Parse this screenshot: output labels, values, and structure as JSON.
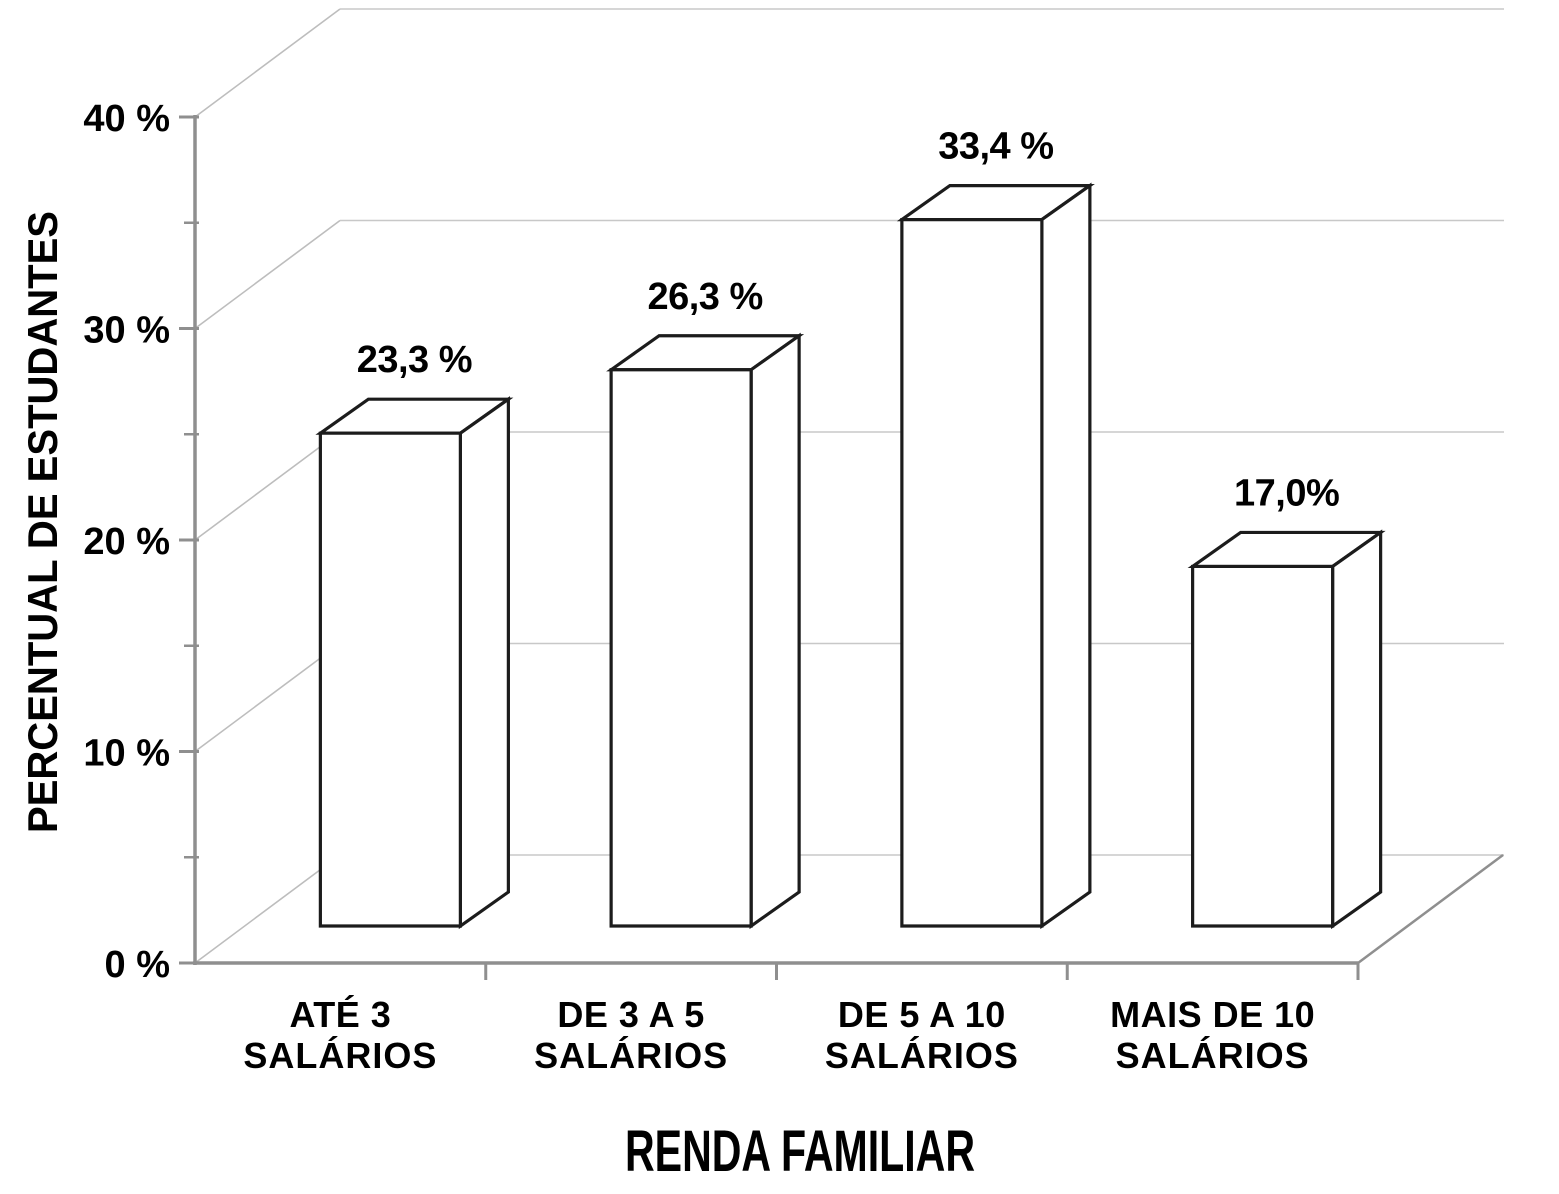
{
  "chart_data": {
    "type": "bar",
    "projection": "3d",
    "title": "",
    "xlabel": "RENDA FAMILIAR",
    "ylabel": "PERCENTUAL DE ESTUDANTES",
    "categories": [
      {
        "line1": "ATÉ 3",
        "line2": "SALÁRIOS"
      },
      {
        "line1": "DE 3 A 5",
        "line2": "SALÁRIOS"
      },
      {
        "line1": "DE 5 A 10",
        "line2": "SALÁRIOS"
      },
      {
        "line1": "MAIS DE 10",
        "line2": "SALÁRIOS"
      }
    ],
    "values": [
      23.3,
      26.3,
      33.4,
      17.0
    ],
    "value_labels": [
      "23,3 %",
      "26,3 %",
      "33,4 %",
      "17,0%"
    ],
    "y_ticks": [
      {
        "value": 0,
        "label": "0 %"
      },
      {
        "value": 10,
        "label": "10 %"
      },
      {
        "value": 20,
        "label": "20 %"
      },
      {
        "value": 30,
        "label": "30 %"
      },
      {
        "value": 40,
        "label": "40 %"
      }
    ],
    "y_minor_ticks": [
      5,
      15,
      25,
      35
    ],
    "ylim": [
      0,
      40
    ],
    "grid": true,
    "legend": false,
    "colors": {
      "background": "#ffffff",
      "bar_fill": "#ffffff",
      "bar_stroke": "#1c1c1c",
      "axis": "#8f8f8f",
      "grid": "#c8c8c8",
      "depth_line": "#bdbdbd",
      "text": "#000000"
    }
  }
}
